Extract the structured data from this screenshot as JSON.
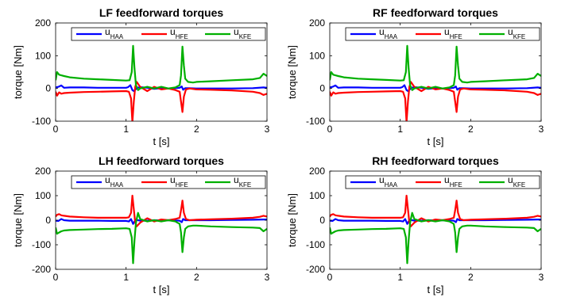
{
  "colors": {
    "u_HAA": "#0000ff",
    "u_HFE": "#ff0000",
    "u_KFE": "#00b000"
  },
  "chart_data": [
    {
      "type": "line",
      "title": "LF feedforward torques",
      "xlabel": "t [s]",
      "ylabel": "torque [Nm]",
      "xlim": [
        0,
        3
      ],
      "ylim": [
        -100,
        200
      ],
      "xticks": [
        "0",
        "1",
        "2",
        "3"
      ],
      "yticks": [
        "-100",
        "0",
        "100",
        "200"
      ],
      "grid": false,
      "legend_position": "top",
      "series": [
        {
          "name": "u",
          "subscript": "HAA",
          "color_key": "u_HAA",
          "x": [
            0,
            0.04,
            0.08,
            0.12,
            0.2,
            0.4,
            0.6,
            0.8,
            1.0,
            1.03,
            1.06,
            1.09,
            1.11,
            1.13,
            1.16,
            1.2,
            1.3,
            1.4,
            1.5,
            1.6,
            1.7,
            1.76,
            1.79,
            1.81,
            1.84,
            1.9,
            2.0,
            2.2,
            2.5,
            2.8,
            2.95,
            3.0
          ],
          "y": [
            3,
            5,
            9,
            2,
            3,
            3,
            2,
            2,
            2,
            4,
            10,
            -5,
            -8,
            -4,
            2,
            4,
            2,
            -1,
            1,
            0,
            1,
            2,
            6,
            -4,
            1,
            1,
            0,
            0,
            0,
            1,
            3,
            2
          ]
        },
        {
          "name": "u",
          "subscript": "HFE",
          "color_key": "u_HFE",
          "x": [
            0,
            0.02,
            0.05,
            0.08,
            0.12,
            0.2,
            0.4,
            0.6,
            0.8,
            1.0,
            1.04,
            1.07,
            1.09,
            1.11,
            1.13,
            1.15,
            1.2,
            1.3,
            1.4,
            1.5,
            1.6,
            1.7,
            1.76,
            1.78,
            1.8,
            1.82,
            1.85,
            1.9,
            2.0,
            2.2,
            2.5,
            2.8,
            2.9,
            2.95,
            3.0
          ],
          "y": [
            -10,
            -22,
            -12,
            -16,
            -14,
            -13,
            -11,
            -10,
            -9,
            -8,
            -10,
            -30,
            -103,
            -40,
            5,
            20,
            5,
            -8,
            5,
            -3,
            0,
            -5,
            -10,
            -40,
            -72,
            -25,
            -3,
            0,
            -3,
            -4,
            -6,
            -10,
            -14,
            -20,
            -16
          ]
        },
        {
          "name": "u",
          "subscript": "KFE",
          "color_key": "u_KFE",
          "x": [
            0,
            0.02,
            0.05,
            0.08,
            0.12,
            0.2,
            0.4,
            0.6,
            0.8,
            1.0,
            1.05,
            1.08,
            1.1,
            1.12,
            1.14,
            1.17,
            1.2,
            1.3,
            1.4,
            1.5,
            1.6,
            1.7,
            1.76,
            1.78,
            1.8,
            1.82,
            1.84,
            1.88,
            1.95,
            2.0,
            2.2,
            2.5,
            2.8,
            2.9,
            2.95,
            3.0
          ],
          "y": [
            25,
            50,
            42,
            40,
            38,
            34,
            30,
            28,
            26,
            24,
            25,
            50,
            130,
            60,
            10,
            -5,
            0,
            5,
            0,
            5,
            0,
            3,
            10,
            40,
            128,
            70,
            30,
            20,
            18,
            20,
            22,
            25,
            28,
            32,
            45,
            38
          ]
        }
      ]
    },
    {
      "type": "line",
      "title": "RF feedforward torques",
      "xlabel": "t [s]",
      "ylabel": "torque [Nm]",
      "xlim": [
        0,
        3
      ],
      "ylim": [
        -100,
        200
      ],
      "xticks": [
        "0",
        "1",
        "2",
        "3"
      ],
      "yticks": [
        "-100",
        "0",
        "100",
        "200"
      ],
      "grid": false,
      "legend_position": "top",
      "series": [
        {
          "name": "u",
          "subscript": "HAA",
          "color_key": "u_HAA",
          "x": [
            0,
            0.04,
            0.08,
            0.12,
            0.2,
            0.4,
            0.6,
            0.8,
            1.0,
            1.03,
            1.06,
            1.09,
            1.11,
            1.13,
            1.16,
            1.2,
            1.3,
            1.4,
            1.5,
            1.6,
            1.7,
            1.76,
            1.79,
            1.81,
            1.84,
            1.9,
            2.0,
            2.2,
            2.5,
            2.8,
            2.95,
            3.0
          ],
          "y": [
            3,
            5,
            9,
            2,
            3,
            3,
            2,
            2,
            2,
            4,
            10,
            -5,
            -8,
            -4,
            2,
            4,
            2,
            -1,
            1,
            0,
            1,
            2,
            6,
            -4,
            1,
            1,
            0,
            0,
            0,
            1,
            3,
            2
          ]
        },
        {
          "name": "u",
          "subscript": "HFE",
          "color_key": "u_HFE",
          "x": [
            0,
            0.02,
            0.05,
            0.08,
            0.12,
            0.2,
            0.4,
            0.6,
            0.8,
            1.0,
            1.04,
            1.07,
            1.09,
            1.11,
            1.13,
            1.15,
            1.2,
            1.3,
            1.4,
            1.5,
            1.6,
            1.7,
            1.76,
            1.78,
            1.8,
            1.82,
            1.85,
            1.9,
            2.0,
            2.2,
            2.5,
            2.8,
            2.9,
            2.95,
            3.0
          ],
          "y": [
            -10,
            -22,
            -12,
            -16,
            -14,
            -13,
            -11,
            -10,
            -9,
            -8,
            -10,
            -30,
            -103,
            -40,
            5,
            20,
            5,
            -8,
            5,
            -3,
            0,
            -5,
            -10,
            -40,
            -72,
            -25,
            -3,
            0,
            -3,
            -4,
            -6,
            -10,
            -14,
            -20,
            -16
          ]
        },
        {
          "name": "u",
          "subscript": "KFE",
          "color_key": "u_KFE",
          "x": [
            0,
            0.02,
            0.05,
            0.08,
            0.12,
            0.2,
            0.4,
            0.6,
            0.8,
            1.0,
            1.05,
            1.08,
            1.1,
            1.12,
            1.14,
            1.17,
            1.2,
            1.3,
            1.4,
            1.5,
            1.6,
            1.7,
            1.76,
            1.78,
            1.8,
            1.82,
            1.84,
            1.88,
            1.95,
            2.0,
            2.2,
            2.5,
            2.8,
            2.9,
            2.95,
            3.0
          ],
          "y": [
            25,
            50,
            42,
            40,
            38,
            34,
            30,
            28,
            26,
            24,
            25,
            50,
            130,
            60,
            10,
            -5,
            0,
            5,
            0,
            5,
            0,
            3,
            10,
            40,
            128,
            70,
            30,
            20,
            18,
            20,
            22,
            25,
            28,
            32,
            45,
            38
          ]
        }
      ]
    },
    {
      "type": "line",
      "title": "LH feedforward torques",
      "xlabel": "t [s]",
      "ylabel": "torque [Nm]",
      "xlim": [
        0,
        3
      ],
      "ylim": [
        -200,
        200
      ],
      "xticks": [
        "0",
        "1",
        "2",
        "3"
      ],
      "yticks": [
        "-200",
        "-100",
        "0",
        "100",
        "200"
      ],
      "grid": false,
      "legend_position": "top",
      "series": [
        {
          "name": "u",
          "subscript": "HAA",
          "color_key": "u_HAA",
          "x": [
            0,
            0.04,
            0.08,
            0.12,
            0.2,
            0.4,
            0.6,
            0.8,
            1.0,
            1.04,
            1.07,
            1.1,
            1.12,
            1.14,
            1.17,
            1.2,
            1.3,
            1.4,
            1.5,
            1.6,
            1.7,
            1.76,
            1.79,
            1.81,
            1.84,
            1.9,
            2.0,
            2.2,
            2.5,
            2.8,
            2.95,
            3.0
          ],
          "y": [
            -2,
            -3,
            5,
            0,
            -2,
            -2,
            -2,
            -3,
            -3,
            -5,
            5,
            -15,
            -5,
            2,
            0,
            -2,
            -2,
            0,
            -1,
            0,
            -1,
            -2,
            -8,
            5,
            0,
            0,
            0,
            0,
            1,
            2,
            3,
            3
          ]
        },
        {
          "name": "u",
          "subscript": "HFE",
          "color_key": "u_HFE",
          "x": [
            0,
            0.02,
            0.05,
            0.08,
            0.12,
            0.2,
            0.4,
            0.6,
            0.8,
            1.0,
            1.04,
            1.07,
            1.09,
            1.11,
            1.13,
            1.15,
            1.2,
            1.3,
            1.4,
            1.5,
            1.6,
            1.7,
            1.76,
            1.78,
            1.8,
            1.82,
            1.85,
            1.9,
            2.0,
            2.2,
            2.5,
            2.8,
            2.9,
            2.95,
            3.0
          ],
          "y": [
            15,
            22,
            25,
            20,
            18,
            15,
            12,
            10,
            10,
            10,
            12,
            30,
            100,
            45,
            -10,
            -25,
            -10,
            8,
            -5,
            3,
            0,
            5,
            10,
            40,
            80,
            30,
            5,
            0,
            2,
            4,
            6,
            10,
            14,
            18,
            15
          ]
        },
        {
          "name": "u",
          "subscript": "KFE",
          "color_key": "u_KFE",
          "x": [
            0,
            0.02,
            0.05,
            0.08,
            0.12,
            0.2,
            0.4,
            0.6,
            0.8,
            1.0,
            1.05,
            1.08,
            1.1,
            1.12,
            1.14,
            1.17,
            1.2,
            1.3,
            1.4,
            1.5,
            1.6,
            1.7,
            1.76,
            1.78,
            1.8,
            1.82,
            1.84,
            1.88,
            1.95,
            2.0,
            2.2,
            2.5,
            2.8,
            2.9,
            2.95,
            3.0
          ],
          "y": [
            -30,
            -55,
            -50,
            -45,
            -42,
            -40,
            -38,
            -36,
            -35,
            -33,
            -35,
            -70,
            -175,
            -80,
            -10,
            30,
            5,
            -5,
            0,
            -5,
            0,
            -5,
            -15,
            -50,
            -130,
            -70,
            -35,
            -25,
            -22,
            -22,
            -25,
            -28,
            -30,
            -32,
            -45,
            -35
          ]
        }
      ]
    },
    {
      "type": "line",
      "title": "RH feedforward torques",
      "xlabel": "t [s]",
      "ylabel": "torque [Nm]",
      "xlim": [
        0,
        3
      ],
      "ylim": [
        -200,
        200
      ],
      "xticks": [
        "0",
        "1",
        "2",
        "3"
      ],
      "yticks": [
        "-200",
        "-100",
        "0",
        "100",
        "200"
      ],
      "grid": false,
      "legend_position": "top",
      "series": [
        {
          "name": "u",
          "subscript": "HAA",
          "color_key": "u_HAA",
          "x": [
            0,
            0.04,
            0.08,
            0.12,
            0.2,
            0.4,
            0.6,
            0.8,
            1.0,
            1.04,
            1.07,
            1.1,
            1.12,
            1.14,
            1.17,
            1.2,
            1.3,
            1.4,
            1.5,
            1.6,
            1.7,
            1.76,
            1.79,
            1.81,
            1.84,
            1.9,
            2.0,
            2.2,
            2.5,
            2.8,
            2.95,
            3.0
          ],
          "y": [
            -2,
            -3,
            5,
            0,
            -2,
            -2,
            -2,
            -3,
            -3,
            -5,
            5,
            -15,
            -5,
            2,
            0,
            -2,
            -2,
            0,
            -1,
            0,
            -1,
            -2,
            -8,
            5,
            0,
            0,
            0,
            0,
            1,
            2,
            3,
            3
          ]
        },
        {
          "name": "u",
          "subscript": "HFE",
          "color_key": "u_HFE",
          "x": [
            0,
            0.02,
            0.05,
            0.08,
            0.12,
            0.2,
            0.4,
            0.6,
            0.8,
            1.0,
            1.04,
            1.07,
            1.09,
            1.11,
            1.13,
            1.15,
            1.2,
            1.3,
            1.4,
            1.5,
            1.6,
            1.7,
            1.76,
            1.78,
            1.8,
            1.82,
            1.85,
            1.9,
            2.0,
            2.2,
            2.5,
            2.8,
            2.9,
            2.95,
            3.0
          ],
          "y": [
            15,
            22,
            25,
            20,
            18,
            15,
            12,
            10,
            10,
            10,
            12,
            30,
            100,
            45,
            -10,
            -25,
            -10,
            8,
            -5,
            3,
            0,
            5,
            10,
            40,
            80,
            30,
            5,
            0,
            2,
            4,
            6,
            10,
            14,
            18,
            15
          ]
        },
        {
          "name": "u",
          "subscript": "KFE",
          "color_key": "u_KFE",
          "x": [
            0,
            0.02,
            0.05,
            0.08,
            0.12,
            0.2,
            0.4,
            0.6,
            0.8,
            1.0,
            1.05,
            1.08,
            1.1,
            1.12,
            1.14,
            1.17,
            1.2,
            1.3,
            1.4,
            1.5,
            1.6,
            1.7,
            1.76,
            1.78,
            1.8,
            1.82,
            1.84,
            1.88,
            1.95,
            2.0,
            2.2,
            2.5,
            2.8,
            2.9,
            2.95,
            3.0
          ],
          "y": [
            -30,
            -55,
            -50,
            -45,
            -42,
            -40,
            -38,
            -36,
            -35,
            -33,
            -35,
            -70,
            -175,
            -80,
            -10,
            30,
            5,
            -5,
            0,
            -5,
            0,
            -5,
            -15,
            -50,
            -130,
            -70,
            -35,
            -25,
            -22,
            -22,
            -25,
            -28,
            -30,
            -32,
            -45,
            -35
          ]
        }
      ]
    }
  ]
}
